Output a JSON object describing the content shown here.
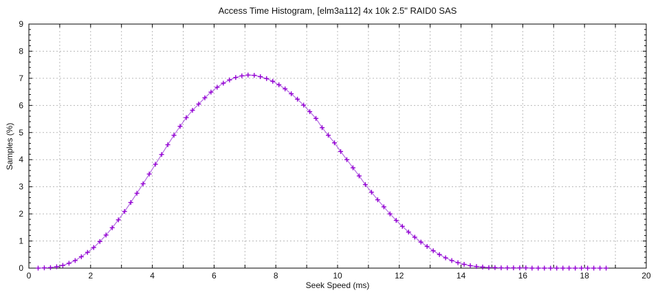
{
  "title": "Access Time Histogram, [elm3a112] 4x 10k 2.5\" RAID0 SAS",
  "chart_data": {
    "type": "line",
    "style": "linespoints-plus-markers",
    "title": "Access Time Histogram, [elm3a112] 4x 10k 2.5\" RAID0 SAS",
    "xlabel": "Seek Speed (ms)",
    "ylabel": "Samples (%)",
    "xlim": [
      0,
      20
    ],
    "ylim": [
      0,
      9
    ],
    "x_major_tick_step": 2,
    "x_grid_step": 1,
    "y_major_tick_step": 1,
    "y_minor_tick_step": 0.2,
    "grid": "on",
    "legend": "none",
    "x_tick_labels": [
      "0",
      "2",
      "4",
      "6",
      "8",
      "10",
      "12",
      "14",
      "16",
      "18",
      "20"
    ],
    "y_tick_labels": [
      "0",
      "1",
      "2",
      "3",
      "4",
      "5",
      "6",
      "7",
      "8",
      "9"
    ],
    "line_color": "#b36ae2",
    "marker_color": "#9400d3",
    "grid_color": "#b8b8b8",
    "border_color": "#000000",
    "x": [
      0.3,
      0.5,
      0.7,
      0.9,
      1.1,
      1.3,
      1.5,
      1.7,
      1.9,
      2.1,
      2.3,
      2.5,
      2.7,
      2.9,
      3.1,
      3.3,
      3.5,
      3.7,
      3.9,
      4.1,
      4.3,
      4.5,
      4.7,
      4.9,
      5.1,
      5.3,
      5.5,
      5.7,
      5.9,
      6.1,
      6.3,
      6.5,
      6.7,
      6.9,
      7.1,
      7.3,
      7.5,
      7.7,
      7.9,
      8.1,
      8.3,
      8.5,
      8.7,
      8.9,
      9.1,
      9.3,
      9.5,
      9.7,
      9.9,
      10.1,
      10.3,
      10.5,
      10.7,
      10.9,
      11.1,
      11.3,
      11.5,
      11.7,
      11.9,
      12.1,
      12.3,
      12.5,
      12.7,
      12.9,
      13.1,
      13.3,
      13.5,
      13.7,
      13.9,
      14.1,
      14.3,
      14.5,
      14.7,
      14.9,
      15.1,
      15.3,
      15.5,
      15.7,
      15.9,
      16.1,
      16.3,
      16.5,
      16.7,
      16.9,
      17.1,
      17.3,
      17.5,
      17.7,
      17.9,
      18.1,
      18.3,
      18.5,
      18.7
    ],
    "y": [
      0.0,
      0.01,
      0.02,
      0.05,
      0.1,
      0.18,
      0.28,
      0.42,
      0.58,
      0.76,
      0.98,
      1.22,
      1.49,
      1.78,
      2.09,
      2.42,
      2.76,
      3.11,
      3.47,
      3.83,
      4.19,
      4.55,
      4.9,
      5.23,
      5.55,
      5.82,
      6.05,
      6.28,
      6.49,
      6.67,
      6.82,
      6.94,
      7.03,
      7.09,
      7.12,
      7.11,
      7.06,
      6.99,
      6.89,
      6.76,
      6.61,
      6.43,
      6.23,
      6.01,
      5.77,
      5.52,
      5.18,
      4.9,
      4.62,
      4.3,
      4.0,
      3.7,
      3.4,
      3.08,
      2.8,
      2.52,
      2.26,
      2.0,
      1.76,
      1.54,
      1.33,
      1.14,
      0.96,
      0.8,
      0.64,
      0.5,
      0.38,
      0.28,
      0.2,
      0.14,
      0.09,
      0.06,
      0.04,
      0.02,
      0.02,
      0.01,
      0.01,
      0.01,
      0.01,
      0.01,
      0.0,
      0.0,
      0.0,
      0.0,
      0.0,
      0.0,
      0.0,
      0.0,
      0.0,
      0.0,
      0.0,
      0.0,
      0.0
    ]
  }
}
